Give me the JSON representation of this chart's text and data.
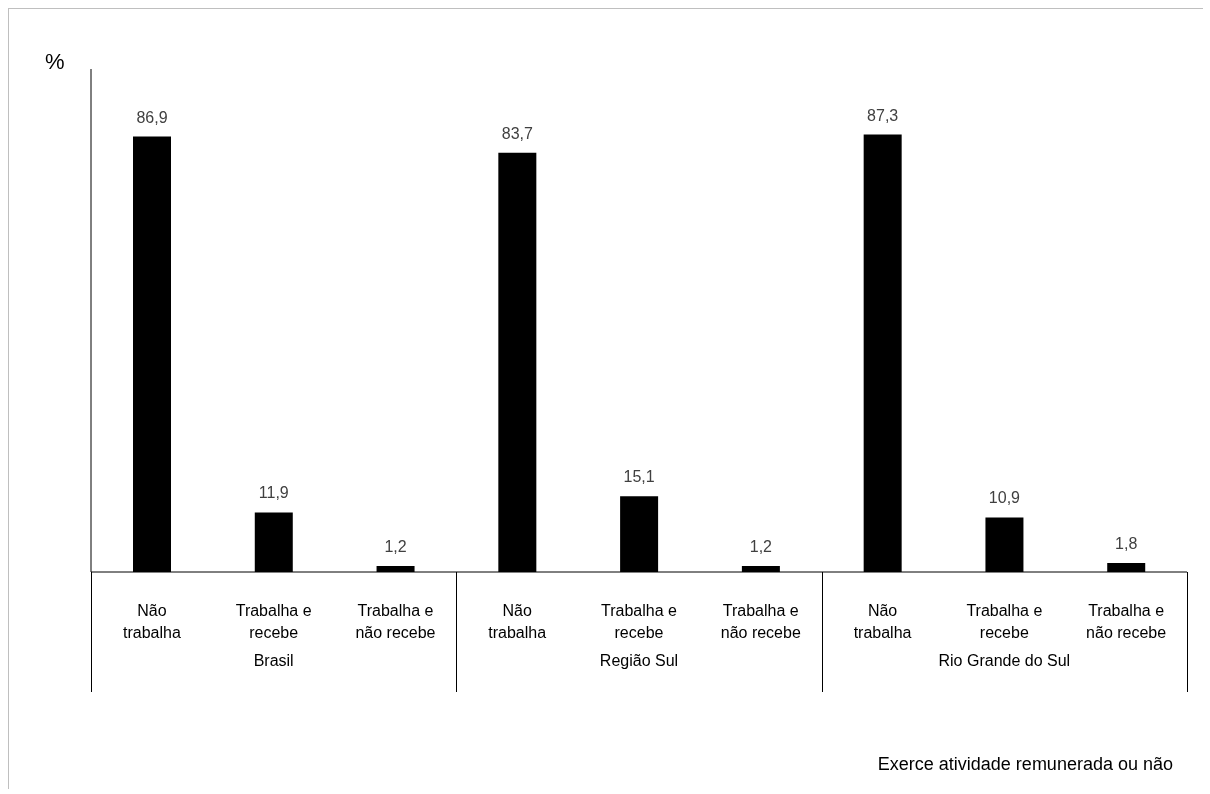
{
  "chart_data": {
    "type": "bar",
    "ylabel": "%",
    "categories": [
      "Não trabalha",
      "Trabalha e recebe",
      "Trabalha e não recebe",
      "Não trabalha",
      "Trabalha e recebe",
      "Trabalha e não recebe",
      "Não trabalha",
      "Trabalha e recebe",
      "Trabalha e não recebe"
    ],
    "values": [
      86.9,
      11.9,
      1.2,
      83.7,
      15.1,
      1.2,
      87.3,
      10.9,
      1.8
    ],
    "value_labels": [
      "86,9",
      "11,9",
      "1,2",
      "83,7",
      "15,1",
      "1,2",
      "87,3",
      "10,9",
      "1,8"
    ],
    "color": "#000000",
    "grid": false,
    "legend": false,
    "annotations": [
      "Brasil",
      "Região Sul",
      "Rio Grande do Sul",
      "Exerce atividade remunerada ou não"
    ]
  }
}
